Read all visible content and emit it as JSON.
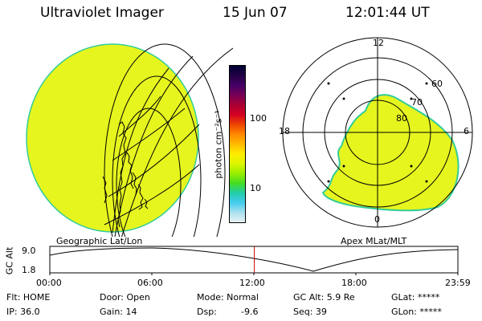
{
  "header": {
    "instrument": "Ultraviolet Imager",
    "date": "15 Jun 07",
    "time": "12:01:44 UT"
  },
  "colors": {
    "aurora_fill": "#e6f51e",
    "aurora_edge": "#33cc99",
    "time_marker": "#cc0000"
  },
  "left_panel": {
    "caption": "Geographic Lat/Lon"
  },
  "right_panel": {
    "caption": "Apex MLat/MLT",
    "mlt_labels": {
      "top": "12",
      "right": "6",
      "bottom": "0",
      "left": "18"
    },
    "lat_labels": [
      "60",
      "70",
      "80"
    ]
  },
  "colorbar": {
    "unit_label": "photon cm⁻²s⁻¹",
    "tick_labels": [
      "100",
      "10"
    ],
    "stops": [
      "#000033",
      "#220044",
      "#440066",
      "#770055",
      "#aa0033",
      "#d40022",
      "#ee4400",
      "#ff8800",
      "#ffbb00",
      "#ffee00",
      "#ddf500",
      "#99ee00",
      "#44dd22",
      "#22ccaa",
      "#44ccee",
      "#aae0ee",
      "#e8f2f2"
    ]
  },
  "timeline": {
    "axis_label": "GC Alt",
    "y_labels": [
      "9.0",
      "1.8"
    ],
    "time_labels": [
      "00:00",
      "06:00",
      "12:00",
      "18:00",
      "23:59"
    ],
    "current_marker_hour": 12.03
  },
  "status": {
    "flt": "Flt: HOME",
    "ip": "IP: 36.0",
    "door": "Door: Open",
    "gain": "Gain: 14",
    "mode": "Mode: Normal",
    "dsp": "Dsp:",
    "dsp_value": "-9.6",
    "gc_alt": "GC Alt: 5.9 Re",
    "seq": "Seq: 39",
    "glat": "GLat: *****",
    "glon": "GLon: *****"
  }
}
